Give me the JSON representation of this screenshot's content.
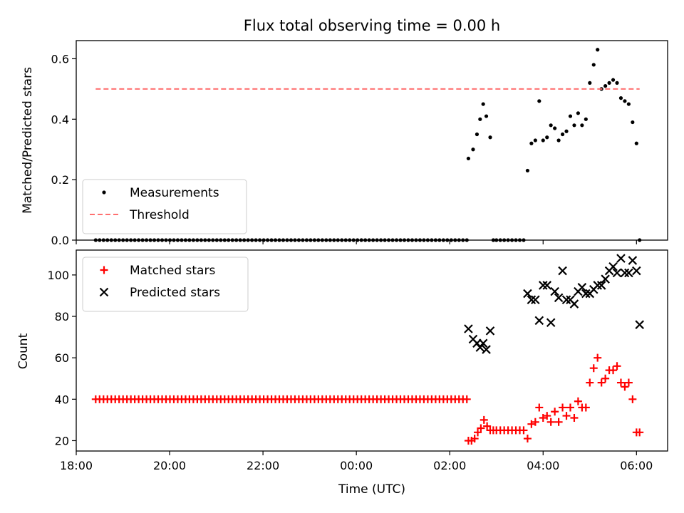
{
  "chart_data": [
    {
      "type": "scatter",
      "title": "Flux total observing time = 0.00 h",
      "xlabel": "",
      "ylabel": "Matched/Predicted stars",
      "x_axis": "time of day (UTC), hours since 18:00 on the first night",
      "xlim": [
        "18:00",
        "06:40"
      ],
      "xticks": [
        "18:00",
        "20:00",
        "22:00",
        "00:00",
        "02:00",
        "04:00",
        "06:00"
      ],
      "ylim": [
        0,
        0.66
      ],
      "yticks": [
        "0.0",
        "0.2",
        "0.4",
        "0.6"
      ],
      "legend_position": "lower-left",
      "series": [
        {
          "name": "Measurements",
          "marker": "dot",
          "color": "#000000",
          "x_start": "18:25",
          "x_end": "02:22",
          "count": 96,
          "constant_value": 0.0,
          "points": [
            [
              "02:24",
              0.27
            ],
            [
              "02:30",
              0.3
            ],
            [
              "02:35",
              0.35
            ],
            [
              "02:39",
              0.4
            ],
            [
              "02:43",
              0.45
            ],
            [
              "02:47",
              0.41
            ],
            [
              "02:52",
              0.34
            ],
            [
              "02:56",
              0.0
            ],
            [
              "03:00",
              0.0
            ],
            [
              "03:05",
              0.0
            ],
            [
              "03:10",
              0.0
            ],
            [
              "03:15",
              0.0
            ],
            [
              "03:20",
              0.0
            ],
            [
              "03:25",
              0.0
            ],
            [
              "03:30",
              0.0
            ],
            [
              "03:35",
              0.0
            ],
            [
              "03:40",
              0.23
            ],
            [
              "03:45",
              0.32
            ],
            [
              "03:50",
              0.33
            ],
            [
              "03:55",
              0.46
            ],
            [
              "04:00",
              0.33
            ],
            [
              "04:05",
              0.34
            ],
            [
              "04:10",
              0.38
            ],
            [
              "04:15",
              0.37
            ],
            [
              "04:20",
              0.33
            ],
            [
              "04:25",
              0.35
            ],
            [
              "04:30",
              0.36
            ],
            [
              "04:35",
              0.41
            ],
            [
              "04:40",
              0.38
            ],
            [
              "04:45",
              0.42
            ],
            [
              "04:50",
              0.38
            ],
            [
              "04:55",
              0.4
            ],
            [
              "05:00",
              0.52
            ],
            [
              "05:05",
              0.58
            ],
            [
              "05:10",
              0.63
            ],
            [
              "05:15",
              0.5
            ],
            [
              "05:20",
              0.51
            ],
            [
              "05:25",
              0.52
            ],
            [
              "05:30",
              0.53
            ],
            [
              "05:35",
              0.52
            ],
            [
              "05:40",
              0.47
            ],
            [
              "05:45",
              0.46
            ],
            [
              "05:50",
              0.45
            ],
            [
              "05:55",
              0.39
            ],
            [
              "06:00",
              0.32
            ],
            [
              "06:04",
              0.0
            ]
          ]
        },
        {
          "name": "Threshold",
          "line_style": "dashed",
          "color": "#ff7070",
          "x": [
            "18:25",
            "06:04"
          ],
          "value": 0.5
        }
      ]
    },
    {
      "type": "scatter",
      "title": "",
      "xlabel": "Time (UTC)",
      "ylabel": "Count",
      "x_axis": "time of day (UTC), hours since 18:00 on the first night",
      "xlim": [
        "18:00",
        "06:40"
      ],
      "xticks": [
        "18:00",
        "20:00",
        "22:00",
        "00:00",
        "02:00",
        "04:00",
        "06:00"
      ],
      "ylim": [
        15,
        112
      ],
      "yticks": [
        "20",
        "40",
        "60",
        "80",
        "100"
      ],
      "legend_position": "upper-left",
      "series": [
        {
          "name": "Matched stars",
          "marker": "plus",
          "color": "#ff0000",
          "x_start": "18:25",
          "x_end": "02:22",
          "count": 96,
          "constant_value": 40,
          "points": [
            [
              "02:24",
              20
            ],
            [
              "02:28",
              20
            ],
            [
              "02:32",
              21
            ],
            [
              "02:36",
              24
            ],
            [
              "02:40",
              26
            ],
            [
              "02:44",
              30
            ],
            [
              "02:48",
              27
            ],
            [
              "02:52",
              25
            ],
            [
              "02:56",
              25
            ],
            [
              "03:00",
              25
            ],
            [
              "03:05",
              25
            ],
            [
              "03:10",
              25
            ],
            [
              "03:15",
              25
            ],
            [
              "03:20",
              25
            ],
            [
              "03:25",
              25
            ],
            [
              "03:30",
              25
            ],
            [
              "03:35",
              25
            ],
            [
              "03:40",
              21
            ],
            [
              "03:45",
              28
            ],
            [
              "03:50",
              29
            ],
            [
              "03:55",
              36
            ],
            [
              "04:00",
              31
            ],
            [
              "04:05",
              32
            ],
            [
              "04:10",
              29
            ],
            [
              "04:15",
              34
            ],
            [
              "04:20",
              29
            ],
            [
              "04:25",
              36
            ],
            [
              "04:30",
              32
            ],
            [
              "04:35",
              36
            ],
            [
              "04:40",
              31
            ],
            [
              "04:45",
              39
            ],
            [
              "04:50",
              36
            ],
            [
              "04:55",
              36
            ],
            [
              "05:00",
              48
            ],
            [
              "05:05",
              55
            ],
            [
              "05:10",
              60
            ],
            [
              "05:15",
              48
            ],
            [
              "05:20",
              50
            ],
            [
              "05:25",
              54
            ],
            [
              "05:30",
              54
            ],
            [
              "05:35",
              56
            ],
            [
              "05:40",
              48
            ],
            [
              "05:45",
              46
            ],
            [
              "05:50",
              48
            ],
            [
              "05:55",
              40
            ],
            [
              "06:00",
              24
            ],
            [
              "06:04",
              24
            ]
          ]
        },
        {
          "name": "Predicted stars",
          "marker": "x",
          "color": "#000000",
          "points": [
            [
              "02:24",
              74
            ],
            [
              "02:30",
              69
            ],
            [
              "02:35",
              67
            ],
            [
              "02:39",
              65
            ],
            [
              "02:43",
              67
            ],
            [
              "02:47",
              64
            ],
            [
              "02:52",
              73
            ],
            [
              "03:40",
              91
            ],
            [
              "03:45",
              88
            ],
            [
              "03:50",
              88
            ],
            [
              "03:55",
              78
            ],
            [
              "04:00",
              95
            ],
            [
              "04:05",
              95
            ],
            [
              "04:10",
              77
            ],
            [
              "04:15",
              92
            ],
            [
              "04:20",
              89
            ],
            [
              "04:25",
              102
            ],
            [
              "04:30",
              88
            ],
            [
              "04:35",
              88
            ],
            [
              "04:40",
              86
            ],
            [
              "04:45",
              92
            ],
            [
              "04:50",
              94
            ],
            [
              "04:55",
              91
            ],
            [
              "05:00",
              91
            ],
            [
              "05:05",
              93
            ],
            [
              "05:10",
              95
            ],
            [
              "05:15",
              95
            ],
            [
              "05:20",
              98
            ],
            [
              "05:25",
              102
            ],
            [
              "05:30",
              104
            ],
            [
              "05:35",
              101
            ],
            [
              "05:40",
              108
            ],
            [
              "05:45",
              101
            ],
            [
              "05:50",
              101
            ],
            [
              "05:55",
              107
            ],
            [
              "06:00",
              102
            ],
            [
              "06:04",
              76
            ]
          ]
        }
      ]
    }
  ]
}
